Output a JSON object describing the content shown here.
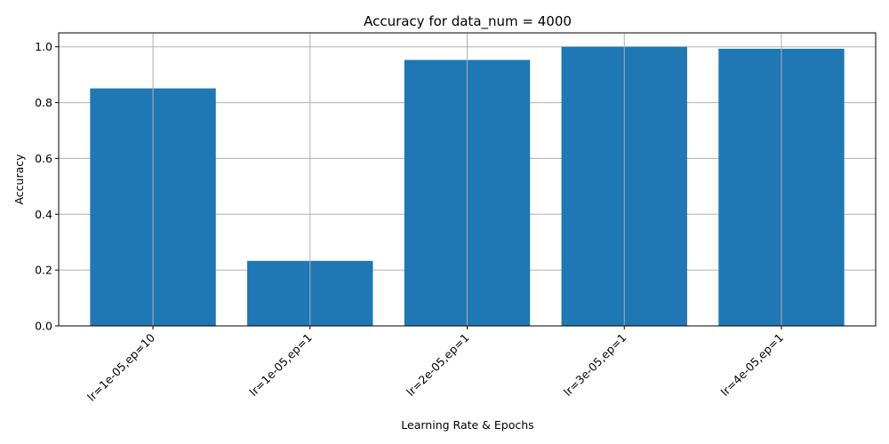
{
  "chart_data": {
    "type": "bar",
    "title": "Accuracy for data_num = 4000",
    "xlabel": "Learning Rate & Epochs",
    "ylabel": "Accuracy",
    "categories": [
      "lr=1e-05,ep=10",
      "lr=1e-05,ep=1",
      "lr=2e-05,ep=1",
      "lr=3e-05,ep=1",
      "lr=4e-05,ep=1"
    ],
    "values": [
      0.851,
      0.233,
      0.953,
      1.0,
      0.993
    ],
    "ylim": [
      0,
      1.05
    ],
    "yticks": [
      "0.0",
      "0.2",
      "0.4",
      "0.6",
      "0.8",
      "1.0"
    ],
    "grid": true,
    "bar_color": "#1f77b4",
    "grid_color": "#b0b0b0"
  }
}
